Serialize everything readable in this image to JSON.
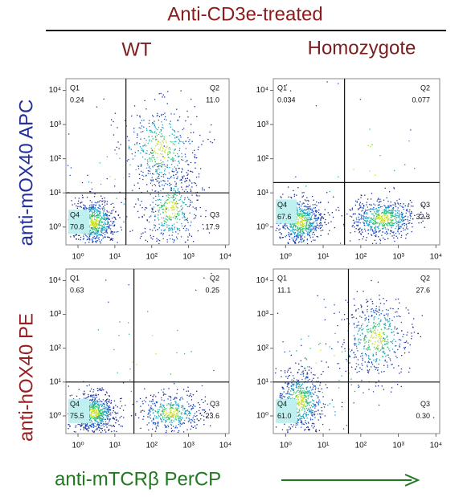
{
  "figure": {
    "title": "Anti-CD3e-treated",
    "columns": [
      "WT",
      "Homozygote"
    ],
    "rows": [
      "anti-mOX40 APC",
      "anti-hOX40 PE"
    ],
    "x_label": "anti-mTCRβ PerCP"
  },
  "chart_data": [
    {
      "type": "quadrant-density",
      "log_x": true,
      "log_y": true,
      "xlim": [
        0.47,
        12600
      ],
      "ylim": [
        0.3,
        22000
      ],
      "xticks": [
        {
          "value": 1,
          "label": "10⁰"
        },
        {
          "value": 10,
          "label": "10¹"
        },
        {
          "value": 100,
          "label": "10²"
        },
        {
          "value": 1000,
          "label": "10³"
        },
        {
          "value": 10000,
          "label": "10⁴"
        }
      ],
      "yticks": [
        {
          "value": 1,
          "label": "10⁰"
        },
        {
          "value": 10,
          "label": "10¹"
        },
        {
          "value": 100,
          "label": "10²"
        },
        {
          "value": 1000,
          "label": "10³"
        },
        {
          "value": 10000,
          "label": "10⁴"
        }
      ],
      "gate": {
        "x": 20,
        "y": 10
      },
      "quadrants": [
        "Q1",
        "Q2",
        "Q3",
        "Q4"
      ],
      "values": [
        0.24,
        11.0,
        17.9,
        70.8
      ],
      "value_labels": [
        "0.24",
        "11.0",
        "17.9",
        "70.8"
      ]
    },
    {
      "type": "quadrant-density",
      "log_x": true,
      "log_y": true,
      "xlim": [
        0.47,
        12600
      ],
      "ylim": [
        0.3,
        22000
      ],
      "xticks": [
        {
          "value": 1,
          "label": "10⁰"
        },
        {
          "value": 10,
          "label": "10¹"
        },
        {
          "value": 100,
          "label": "10²"
        },
        {
          "value": 1000,
          "label": "10³"
        },
        {
          "value": 10000,
          "label": "10⁴"
        }
      ],
      "yticks": [
        {
          "value": 1,
          "label": "10⁰"
        },
        {
          "value": 10,
          "label": "10¹"
        },
        {
          "value": 100,
          "label": "10²"
        },
        {
          "value": 1000,
          "label": "10³"
        },
        {
          "value": 10000,
          "label": "10⁴"
        }
      ],
      "gate": {
        "x": 37,
        "y": 20
      },
      "quadrants": [
        "Q1",
        "Q2",
        "Q3",
        "Q4"
      ],
      "values": [
        0.034,
        0.077,
        32.3,
        67.6
      ],
      "value_labels": [
        "0.034",
        "0.077",
        "32.3",
        "67.6"
      ]
    },
    {
      "type": "quadrant-density",
      "log_x": true,
      "log_y": true,
      "xlim": [
        0.47,
        12600
      ],
      "ylim": [
        0.3,
        22000
      ],
      "xticks": [
        {
          "value": 1,
          "label": "10⁰"
        },
        {
          "value": 10,
          "label": "10¹"
        },
        {
          "value": 100,
          "label": "10²"
        },
        {
          "value": 1000,
          "label": "10³"
        },
        {
          "value": 10000,
          "label": "10⁴"
        }
      ],
      "yticks": [
        {
          "value": 1,
          "label": "10⁰"
        },
        {
          "value": 10,
          "label": "10¹"
        },
        {
          "value": 100,
          "label": "10²"
        },
        {
          "value": 1000,
          "label": "10³"
        },
        {
          "value": 10000,
          "label": "10⁴"
        }
      ],
      "gate": {
        "x": 33,
        "y": 10
      },
      "quadrants": [
        "Q1",
        "Q2",
        "Q3",
        "Q4"
      ],
      "values": [
        0.63,
        0.25,
        23.6,
        75.5
      ],
      "value_labels": [
        "0.63",
        "0.25",
        "23.6",
        "75.5"
      ]
    },
    {
      "type": "quadrant-density",
      "log_x": true,
      "log_y": true,
      "xlim": [
        0.47,
        12600
      ],
      "ylim": [
        0.3,
        22000
      ],
      "xticks": [
        {
          "value": 1,
          "label": "10⁰"
        },
        {
          "value": 10,
          "label": "10¹"
        },
        {
          "value": 100,
          "label": "10²"
        },
        {
          "value": 1000,
          "label": "10³"
        },
        {
          "value": 10000,
          "label": "10⁴"
        }
      ],
      "yticks": [
        {
          "value": 1,
          "label": "10⁰"
        },
        {
          "value": 10,
          "label": "10¹"
        },
        {
          "value": 100,
          "label": "10²"
        },
        {
          "value": 1000,
          "label": "10³"
        },
        {
          "value": 10000,
          "label": "10⁴"
        }
      ],
      "gate": {
        "x": 47,
        "y": 10
      },
      "quadrants": [
        "Q1",
        "Q2",
        "Q3",
        "Q4"
      ],
      "values": [
        11.1,
        27.6,
        0.3,
        61.0
      ],
      "value_labels": [
        "11.1",
        "27.6",
        "0.30",
        "61.0"
      ]
    }
  ]
}
